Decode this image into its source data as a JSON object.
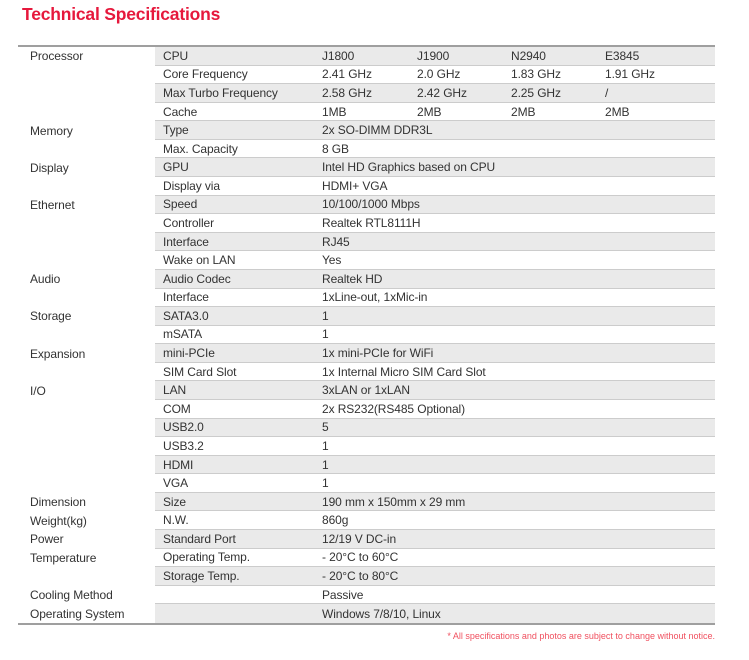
{
  "page": {
    "title": "Technical Specifications",
    "footnote": "* All specifications and photos are subject to change without notice."
  },
  "colors": {
    "accent_red": "#e6183c",
    "footnote_red": "#f0505f",
    "band_gray": "#eaeaea",
    "table_border_gray": "#9f9f9f",
    "row_separator_gray": "#cccccc",
    "text": "#333333"
  },
  "table": {
    "rows": [
      {
        "category": "Processor",
        "label": "CPU",
        "values": [
          "J1800",
          "J1900",
          "N2940",
          "E3845"
        ]
      },
      {
        "label": "Core Frequency",
        "values": [
          "2.41 GHz",
          "2.0 GHz",
          "1.83 GHz",
          "1.91 GHz"
        ]
      },
      {
        "label": "Max Turbo Frequency",
        "values": [
          "2.58 GHz",
          "2.42 GHz",
          "2.25 GHz",
          "/"
        ]
      },
      {
        "label": "Cache",
        "values": [
          "1MB",
          "2MB",
          "2MB",
          "2MB"
        ]
      },
      {
        "category": "Memory",
        "label": "Type",
        "value": "2x SO-DIMM DDR3L"
      },
      {
        "label": "Max. Capacity",
        "value": "8 GB"
      },
      {
        "category": "Display",
        "label": "GPU",
        "value": "Intel HD Graphics based on CPU"
      },
      {
        "label": "Display via",
        "value": "HDMI+ VGA"
      },
      {
        "category": "Ethernet",
        "label": "Speed",
        "value": "10/100/1000 Mbps"
      },
      {
        "label": "Controller",
        "value": "Realtek RTL8111H"
      },
      {
        "label": "Interface",
        "value": "RJ45"
      },
      {
        "label": "Wake on LAN",
        "value": "Yes"
      },
      {
        "category": "Audio",
        "label": "Audio Codec",
        "value": "Realtek HD"
      },
      {
        "label": "Interface",
        "value": "1xLine-out, 1xMic-in"
      },
      {
        "category": "Storage",
        "label": "SATA3.0",
        "value": "1"
      },
      {
        "label": "mSATA",
        "value": "1"
      },
      {
        "category": "Expansion",
        "label": "mini-PCIe",
        "value": "1x mini-PCIe for WiFi"
      },
      {
        "label": "SIM Card Slot",
        "value": "1x Internal Micro SIM Card Slot"
      },
      {
        "category": "I/O",
        "label": "LAN",
        "value": "3xLAN or 1xLAN"
      },
      {
        "label": "COM",
        "value": "2x RS232(RS485 Optional)"
      },
      {
        "label": "USB2.0",
        "value": "5"
      },
      {
        "label": "USB3.2",
        "value": "1"
      },
      {
        "label": "HDMI",
        "value": "1"
      },
      {
        "label": "VGA",
        "value": "1"
      },
      {
        "category": "Dimension",
        "label": "Size",
        "value": "190 mm x 150mm x 29 mm"
      },
      {
        "category": "Weight(kg)",
        "label": "N.W.",
        "value": "860g"
      },
      {
        "category": "Power",
        "label": "Standard Port",
        "value": "12/19 V DC-in"
      },
      {
        "category": "Temperature",
        "label": "Operating Temp.",
        "value": "- 20°C to 60°C"
      },
      {
        "label": "Storage Temp.",
        "value": "- 20°C to 80°C"
      },
      {
        "category": "Cooling Method",
        "value": "Passive"
      },
      {
        "category": "Operating System",
        "value": "Windows 7/8/10, Linux"
      }
    ]
  }
}
